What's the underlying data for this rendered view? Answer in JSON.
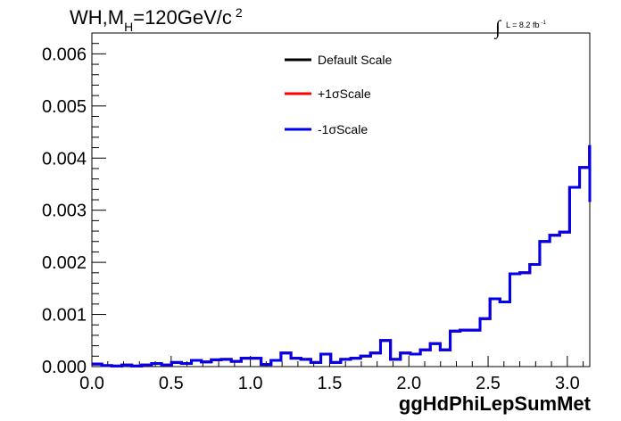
{
  "title": {
    "main": "WH,M",
    "sub": "H",
    "rest": "=120GeV/c",
    "sup": "2"
  },
  "lumi": {
    "integral": "∫",
    "text": "L = 8.2 fb",
    "sup": "-1"
  },
  "chart_data": {
    "type": "line",
    "xlabel": "ggHdPhiLepSumMet",
    "ylabel": "",
    "xlim": [
      0,
      3.1416
    ],
    "ylim": [
      0,
      0.0064
    ],
    "xticks": [
      "0.0",
      "0.5",
      "1.0",
      "1.5",
      "2.0",
      "2.5",
      "3.0"
    ],
    "xtick_values": [
      0,
      0.5,
      1.0,
      1.5,
      2.0,
      2.5,
      3.0
    ],
    "yticks": [
      "0.000",
      "0.001",
      "0.002",
      "0.003",
      "0.004",
      "0.005",
      "0.006"
    ],
    "ytick_values": [
      0,
      0.001,
      0.002,
      0.003,
      0.004,
      0.005,
      0.006
    ],
    "bin_width": 0.0628,
    "grid": false,
    "legend_placement": "top-center",
    "series": [
      {
        "name": "Default Scale",
        "color": "#000000",
        "values": [
          5e-05,
          2e-05,
          1e-05,
          3e-05,
          1e-05,
          3e-05,
          6e-05,
          3e-05,
          8e-05,
          6e-05,
          0.00012,
          9e-05,
          0.00013,
          0.00014,
          0.0001,
          0.00016,
          0.00016,
          4e-05,
          0.00012,
          0.00026,
          0.00016,
          0.00014,
          8e-05,
          0.00024,
          8e-05,
          0.00014,
          0.00016,
          0.0002,
          0.00026,
          0.0005,
          0.00014,
          0.00026,
          0.00024,
          0.00032,
          0.00044,
          0.00032,
          0.00068,
          0.0007,
          0.0007,
          0.00092,
          0.0013,
          0.00124,
          0.00178,
          0.0018,
          0.00196,
          0.0024,
          0.00252,
          0.00258,
          0.00344,
          0.00382,
          0.00422,
          0.00316
        ]
      },
      {
        "name": "+1σScale",
        "color": "#ff0000",
        "values": [
          5e-05,
          2e-05,
          1e-05,
          3e-05,
          1e-05,
          3e-05,
          6e-05,
          3e-05,
          8e-05,
          6e-05,
          0.00012,
          9e-05,
          0.00013,
          0.00014,
          0.0001,
          0.00016,
          0.00016,
          4e-05,
          0.00012,
          0.00026,
          0.00016,
          0.00014,
          8e-05,
          0.00024,
          8e-05,
          0.00014,
          0.00016,
          0.0002,
          0.00026,
          0.0005,
          0.00014,
          0.00026,
          0.00024,
          0.00032,
          0.00044,
          0.00032,
          0.00068,
          0.0007,
          0.0007,
          0.00092,
          0.0013,
          0.00124,
          0.00178,
          0.0018,
          0.00196,
          0.0024,
          0.00252,
          0.00258,
          0.00344,
          0.00382,
          0.00422,
          0.00316
        ]
      },
      {
        "name": "-1σScale",
        "color": "#0000ee",
        "values": [
          5e-05,
          2e-05,
          1e-05,
          3e-05,
          1e-05,
          3e-05,
          6e-05,
          3e-05,
          8e-05,
          6e-05,
          0.00012,
          9e-05,
          0.00013,
          0.00014,
          0.0001,
          0.00016,
          0.00016,
          4e-05,
          0.00012,
          0.00026,
          0.00016,
          0.00014,
          8e-05,
          0.00024,
          8e-05,
          0.00014,
          0.00016,
          0.0002,
          0.00026,
          0.0005,
          0.00014,
          0.00026,
          0.00024,
          0.00032,
          0.00044,
          0.00032,
          0.00068,
          0.0007,
          0.0007,
          0.00092,
          0.0013,
          0.00124,
          0.00178,
          0.0018,
          0.00196,
          0.0024,
          0.00252,
          0.00258,
          0.00344,
          0.00382,
          0.00422,
          0.00316
        ]
      }
    ]
  }
}
